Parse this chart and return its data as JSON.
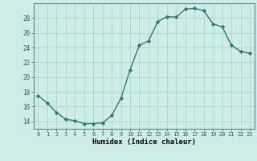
{
  "x": [
    0,
    1,
    2,
    3,
    4,
    5,
    6,
    7,
    8,
    9,
    10,
    11,
    12,
    13,
    14,
    15,
    16,
    17,
    18,
    19,
    20,
    21,
    22,
    23
  ],
  "y": [
    17.5,
    16.5,
    15.2,
    14.3,
    14.1,
    13.7,
    13.7,
    13.8,
    14.8,
    17.1,
    21.0,
    24.3,
    24.9,
    27.5,
    28.2,
    28.1,
    29.2,
    29.3,
    29.0,
    27.2,
    26.8,
    24.3,
    23.5,
    23.2
  ],
  "line_color": "#2d7a6e",
  "marker": "D",
  "markersize": 2.2,
  "linewidth": 1.0,
  "bg_color": "#ceecea",
  "grid_color": "#b0d4d0",
  "xlabel": "Humidex (Indice chaleur)",
  "ylabel": "",
  "title": "",
  "xtick_labels": [
    "0",
    "1",
    "2",
    "3",
    "4",
    "5",
    "6",
    "7",
    "8",
    "9",
    "10",
    "11",
    "12",
    "13",
    "14",
    "15",
    "16",
    "17",
    "18",
    "19",
    "20",
    "21",
    "22",
    "23"
  ],
  "ytick_values": [
    14,
    16,
    18,
    20,
    22,
    24,
    26,
    28
  ],
  "ylim": [
    13.0,
    30.0
  ],
  "xlim": [
    -0.5,
    23.5
  ]
}
